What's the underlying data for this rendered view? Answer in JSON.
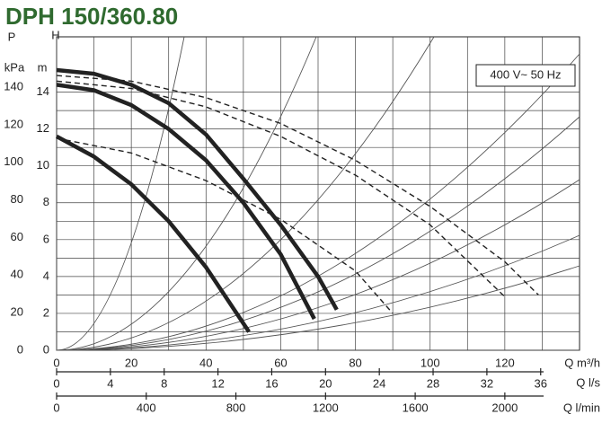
{
  "chart_data": {
    "type": "line",
    "title": "DPH 150/360.80",
    "annotation": "400 V~ 50 Hz",
    "xlabel": "Q m³/h",
    "xlim": [
      0,
      140
    ],
    "xticks": [
      0,
      20,
      40,
      60,
      80,
      100,
      120
    ],
    "x2label": "Q l/s",
    "x2lim": [
      0,
      38.89
    ],
    "x2ticks": [
      0,
      4,
      8,
      12,
      16,
      20,
      24,
      28,
      32,
      36
    ],
    "x3label": "Q l/min",
    "x3lim": [
      0,
      2333.3
    ],
    "x3ticks": [
      0,
      400,
      800,
      1200,
      1600,
      2000
    ],
    "ylabel": "H",
    "yunit": "m",
    "ylim": [
      0,
      17
    ],
    "yticks": [
      0,
      2,
      4,
      6,
      8,
      10,
      12,
      14
    ],
    "y2label": "P",
    "y2unit": "kPa",
    "y2lim": [
      0,
      166.8
    ],
    "y2ticks": [
      0,
      20,
      40,
      60,
      80,
      100,
      120,
      140
    ],
    "grid": true,
    "minor_grid": true,
    "series": [
      {
        "color": "#222222",
        "dashed": false,
        "x": [
          0,
          10,
          20,
          30,
          40,
          50,
          60,
          70,
          75
        ],
        "values": [
          15.2,
          15.0,
          14.4,
          13.4,
          11.7,
          9.3,
          6.8,
          4.0,
          2.2
        ]
      },
      {
        "color": "#222222",
        "dashed": false,
        "x": [
          0,
          10,
          20,
          30,
          40,
          50,
          60,
          69
        ],
        "values": [
          14.4,
          14.1,
          13.3,
          12.0,
          10.3,
          8.0,
          5.2,
          1.7
        ]
      },
      {
        "color": "#222222",
        "dashed": false,
        "x": [
          0,
          10,
          20,
          30,
          40,
          51.5
        ],
        "values": [
          11.6,
          10.5,
          9.0,
          7.0,
          4.5,
          1.0
        ]
      },
      {
        "color": "#222222",
        "dashed": true,
        "x": [
          0,
          20,
          40,
          60,
          80,
          100,
          120,
          129
        ],
        "values": [
          14.9,
          14.6,
          13.7,
          12.3,
          10.3,
          7.8,
          4.8,
          3.0
        ]
      },
      {
        "color": "#222222",
        "dashed": true,
        "x": [
          0,
          20,
          40,
          60,
          80,
          100,
          120
        ],
        "values": [
          14.6,
          14.2,
          13.2,
          11.6,
          9.5,
          6.8,
          2.9
        ]
      },
      {
        "color": "#222222",
        "dashed": true,
        "x": [
          0,
          20,
          40,
          60,
          80,
          90
        ],
        "values": [
          11.5,
          10.7,
          9.2,
          7.1,
          4.3,
          2.0
        ]
      }
    ]
  }
}
